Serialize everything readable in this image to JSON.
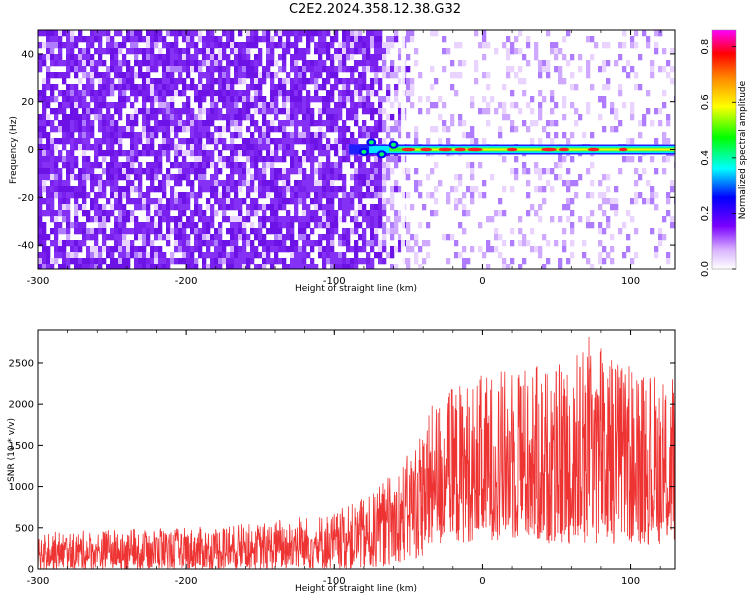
{
  "title": "C2E2.2024.358.12.38.G32",
  "colors": {
    "snr_line": "#ee3333",
    "noise_purple": "#7a20ee",
    "colorbar_stops": [
      "#ffffff",
      "#7a00ff",
      "#0000ff",
      "#00ffff",
      "#00ff00",
      "#ffff00",
      "#ff8800",
      "#ff0000",
      "#ff00ff"
    ]
  },
  "chart_data": [
    {
      "type": "heatmap",
      "xlabel": "Height of straight line (km)",
      "ylabel": "Frequency (Hz)",
      "xlim": [
        -300,
        130
      ],
      "ylim": [
        -50,
        50
      ],
      "xticks": [
        -300,
        -200,
        -100,
        0,
        100
      ],
      "yticks": [
        -40,
        -20,
        0,
        20,
        40
      ],
      "colorbar": {
        "label": "Normalized spectral amplitude",
        "range": [
          0.0,
          0.86
        ],
        "ticks": [
          "0.0",
          "0.2",
          "0.4",
          "0.6",
          "0.8"
        ]
      },
      "features": {
        "noise_region_x": [
          -300,
          -70
        ],
        "signal_start_x": -90,
        "signal_frequency": 0,
        "signal_peak_amplitude": 0.86
      }
    },
    {
      "type": "line",
      "xlabel": "Height of straight line (km)",
      "ylabel": "SNR (10 * v/v)",
      "xlim": [
        -300,
        130
      ],
      "ylim": [
        0,
        2900
      ],
      "xticks": [
        -300,
        -200,
        -100,
        0,
        100
      ],
      "yticks": [
        0,
        500,
        1000,
        1500,
        2000,
        2500
      ],
      "series": [
        {
          "x": [
            -300,
            -250,
            -200,
            -150,
            -100,
            -75,
            -50,
            -40,
            -30,
            -20,
            0,
            25,
            50,
            75,
            100,
            130
          ],
          "y_low": [
            0,
            0,
            0,
            0,
            0,
            0,
            100,
            150,
            250,
            300,
            350,
            350,
            300,
            300,
            300,
            300
          ],
          "y_high": [
            450,
            480,
            500,
            560,
            700,
            900,
            1400,
            1800,
            2100,
            2250,
            2350,
            2500,
            2450,
            2900,
            2500,
            2380
          ]
        }
      ]
    }
  ]
}
